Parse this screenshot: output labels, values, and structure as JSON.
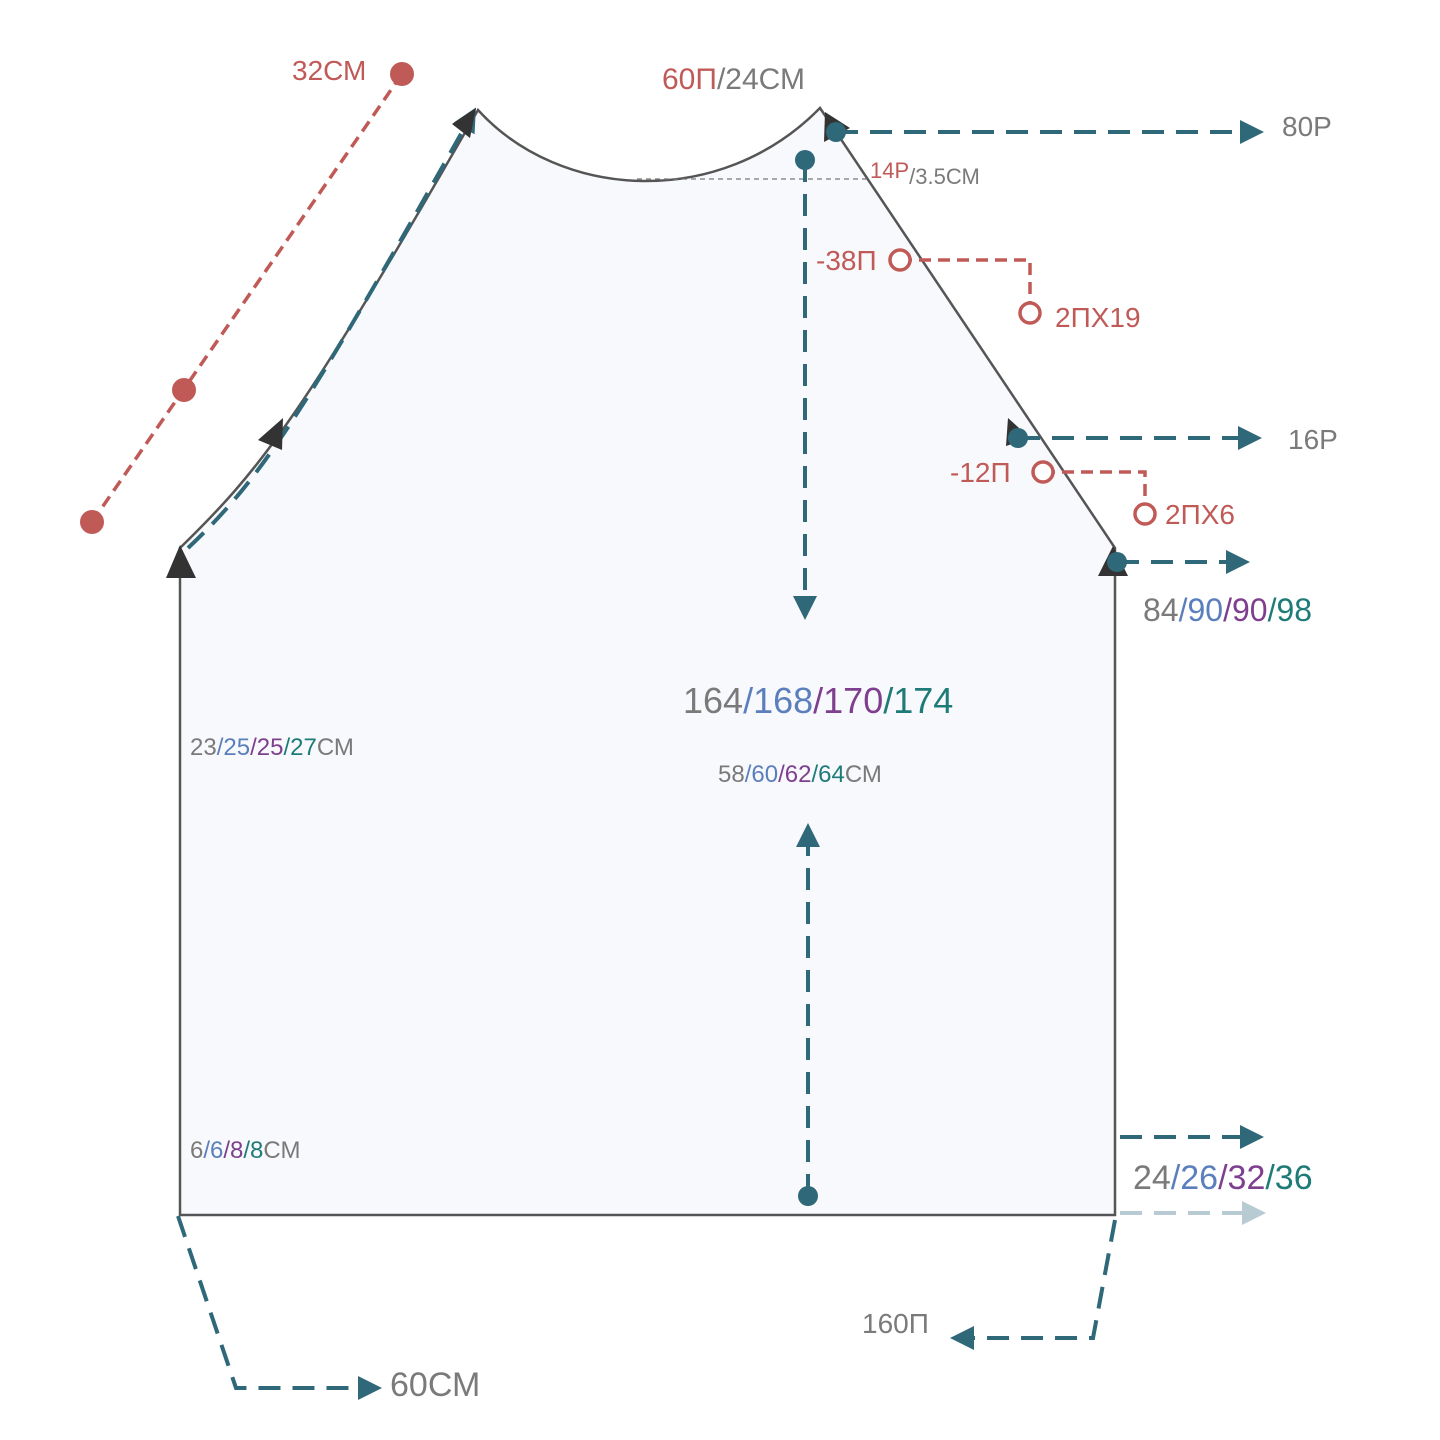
{
  "labels": {
    "raglan_length": "32СМ",
    "neck": [
      "60П",
      "/24СМ"
    ],
    "top_rows": "80Р",
    "neck_depth": [
      "14Р",
      "/3.5СМ"
    ],
    "decrease_1": "-38П",
    "decrease_1_rate": "2ПХ19",
    "middle_rows": "16Р",
    "decrease_2": "-12П",
    "decrease_2_rate": "2ПХ6",
    "armhole_rows": [
      "84",
      "/90",
      "/90",
      "/98"
    ],
    "total_rows": [
      "164",
      "/168",
      "/170",
      "/174"
    ],
    "armhole_height": [
      "23",
      "/25",
      "/25",
      "/27",
      "СМ"
    ],
    "total_length": [
      "58",
      "/60",
      "/62",
      "/64",
      "СМ"
    ],
    "rib_height": [
      "6",
      "/6",
      "/8",
      "/8",
      "СМ"
    ],
    "rib_rows": [
      "24",
      "/26",
      "/32",
      "/36"
    ],
    "cast_on": "160П",
    "width": "60СМ"
  }
}
